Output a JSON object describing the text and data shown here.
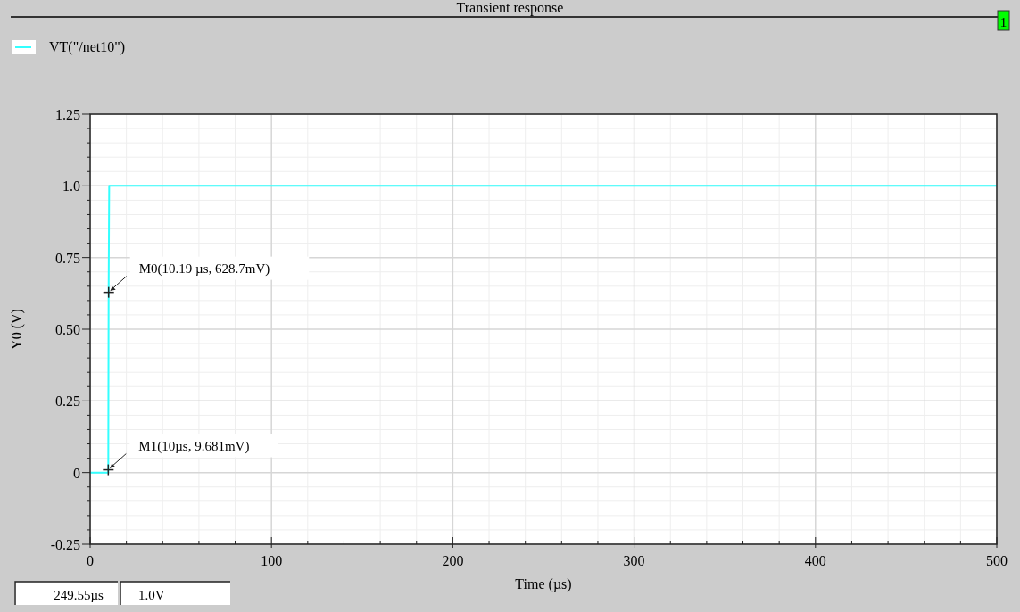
{
  "chart_data": {
    "type": "line",
    "title": "Transient response",
    "xlabel": "Time (µs)",
    "ylabel": "Y0 (V)",
    "x": [
      0,
      10,
      10.19,
      10.5,
      500
    ],
    "series": [
      {
        "name": "VT(\"/net10\")",
        "color": "#33ffff",
        "values": [
          0,
          0,
          0.63,
          1.0,
          1.0
        ]
      }
    ],
    "xlim": [
      0,
      500
    ],
    "xticks": [
      0,
      100,
      200,
      300,
      400,
      500
    ],
    "ylim": [
      -0.25,
      1.25
    ],
    "yticks": [
      {
        "value": -0.25,
        "label": "-0.25"
      },
      0,
      0.25,
      {
        "value": 0.5,
        "label": "0.50"
      },
      0.75,
      {
        "value": 1,
        "label": "1.0"
      },
      1.25
    ],
    "grid": true,
    "legend": "top left",
    "marker": "none",
    "line_style": "solid",
    "annotations": [
      {
        "text": "M0(10.19 µs, 628.7mV)",
        "x": 10.19,
        "y": 0.6287
      },
      {
        "text": "M1(10µs, 9.681mV)",
        "x": 10,
        "y": 0.009681
      },
      "249.55µs",
      "1.0V",
      "1"
    ]
  }
}
